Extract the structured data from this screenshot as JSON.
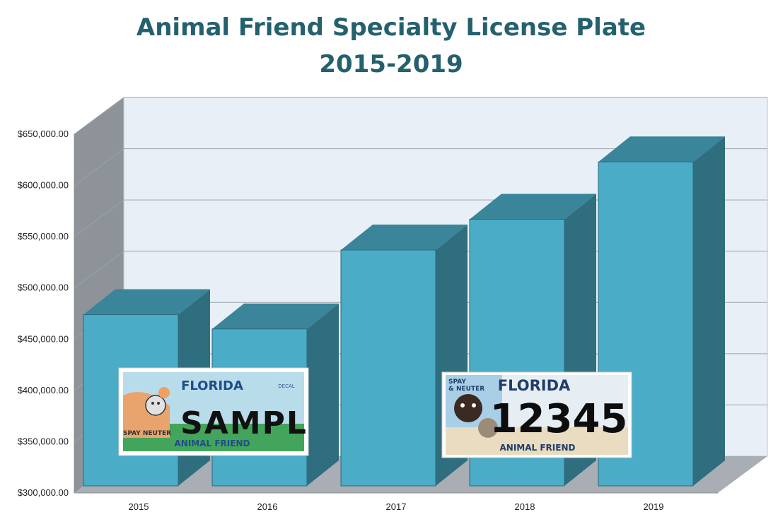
{
  "chart_data": {
    "type": "bar",
    "title": "Animal Friend Specialty License Plate",
    "subtitle": "2015-2019",
    "categories": [
      "2015",
      "2016",
      "2017",
      "2018",
      "2019"
    ],
    "values": [
      474000,
      460000,
      537000,
      567000,
      623000
    ],
    "y_ticks": [
      "$300,000.00",
      "$350,000.00",
      "$400,000.00",
      "$450,000.00",
      "$500,000.00",
      "$550,000.00",
      "$600,000.00",
      "$650,000.00"
    ],
    "ylim": [
      300000,
      650000
    ],
    "grid": true,
    "legend": "none",
    "style": "3d-column",
    "colors": {
      "bar_front": "#4aacc6",
      "bar_top": "#3a8599",
      "bar_side": "#2f6e7f",
      "title": "#24606e"
    }
  },
  "plates": {
    "plate_2015": {
      "state": "FLORIDA",
      "number": "SAMPL",
      "slogan": "ANIMAL FRIEND",
      "left_text": "SPAY NEUTER",
      "corner": "DECAL"
    },
    "plate_2018": {
      "state": "FLORIDA",
      "number": "12345",
      "slogan": "ANIMAL FRIEND",
      "left_text_1": "SPAY",
      "left_text_2": "& NEUTER"
    }
  }
}
